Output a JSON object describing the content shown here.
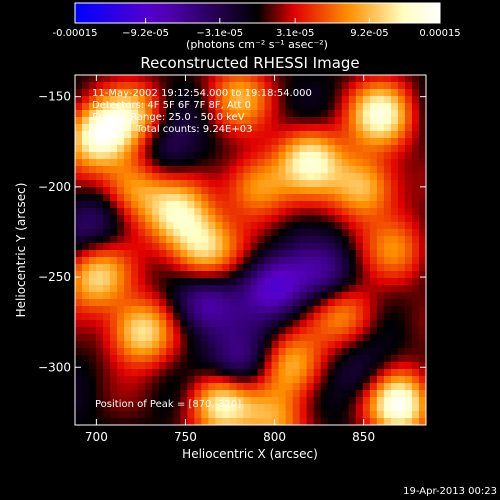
{
  "chart_data": {
    "type": "heatmap",
    "title": "Reconstructed RHESSI Image",
    "xlabel": "Heliocentric X (arcsec)",
    "ylabel": "Heliocentric Y (arcsec)",
    "xlim": [
      688,
      885
    ],
    "ylim": [
      -332,
      -138
    ],
    "x_ticks": [
      700,
      750,
      800,
      850
    ],
    "y_ticks": [
      -150,
      -200,
      -250,
      -300
    ],
    "colorbar": {
      "range": [
        -0.00015,
        0.00015
      ],
      "tick_values": [
        -0.00015,
        -9.2e-05,
        -3.1e-05,
        3.1e-05,
        9.2e-05,
        0.00015
      ],
      "tick_labels": [
        "-0.00015",
        "−9.2e-05",
        "−3.1e-05",
        "3.1e-05",
        "9.2e-05",
        "0.00015"
      ],
      "unit_label": "(photons cm⁻² s⁻¹ asec⁻²)",
      "colors": [
        "#0000ff",
        "#5a00c8",
        "#000000",
        "#e00000",
        "#ff9000",
        "#ffffc0",
        "#ffffff"
      ]
    },
    "annotations": [
      "11-May-2002 19:12:54.000 to 19:18:54.000",
      "Detectors: 4F 5F 6F 7F 8F, Att 0",
      "Energy Range: 25.0 - 50.0 keV",
      "Clean     Total counts: 9.24E+03"
    ],
    "peak_label": "Position of Peak = [870,-320]",
    "peak": {
      "x": 870,
      "y": -320
    },
    "sources": [
      {
        "x": 870,
        "y": -320,
        "value": 1.0
      },
      {
        "x": 700,
        "y": -172,
        "value": 0.85
      },
      {
        "x": 720,
        "y": -200,
        "value": 0.6
      },
      {
        "x": 745,
        "y": -215,
        "value": 0.7
      },
      {
        "x": 790,
        "y": -200,
        "value": 0.6
      },
      {
        "x": 820,
        "y": -185,
        "value": 0.75
      },
      {
        "x": 860,
        "y": -160,
        "value": 0.8
      },
      {
        "x": 850,
        "y": -200,
        "value": 0.7
      },
      {
        "x": 760,
        "y": -235,
        "value": 0.75
      },
      {
        "x": 700,
        "y": -250,
        "value": 0.7
      },
      {
        "x": 725,
        "y": -280,
        "value": 0.8
      },
      {
        "x": 770,
        "y": -320,
        "value": 0.85
      },
      {
        "x": 810,
        "y": -300,
        "value": 0.6
      },
      {
        "x": 840,
        "y": -270,
        "value": 0.55
      },
      {
        "x": 780,
        "y": -150,
        "value": 0.5
      },
      {
        "x": 720,
        "y": -160,
        "value": 0.55
      },
      {
        "x": 870,
        "y": -235,
        "value": 0.45
      },
      {
        "x": 800,
        "y": -330,
        "value": 0.5
      },
      {
        "x": 760,
        "y": -265,
        "value": -0.55
      },
      {
        "x": 800,
        "y": -255,
        "value": -0.6
      },
      {
        "x": 780,
        "y": -300,
        "value": -0.5
      },
      {
        "x": 830,
        "y": -250,
        "value": -0.4
      },
      {
        "x": 700,
        "y": -220,
        "value": -0.35
      },
      {
        "x": 740,
        "y": -180,
        "value": -0.3
      },
      {
        "x": 850,
        "y": -305,
        "value": -0.3
      }
    ]
  },
  "footer": {
    "date": "19-Apr-2013 00:23"
  }
}
